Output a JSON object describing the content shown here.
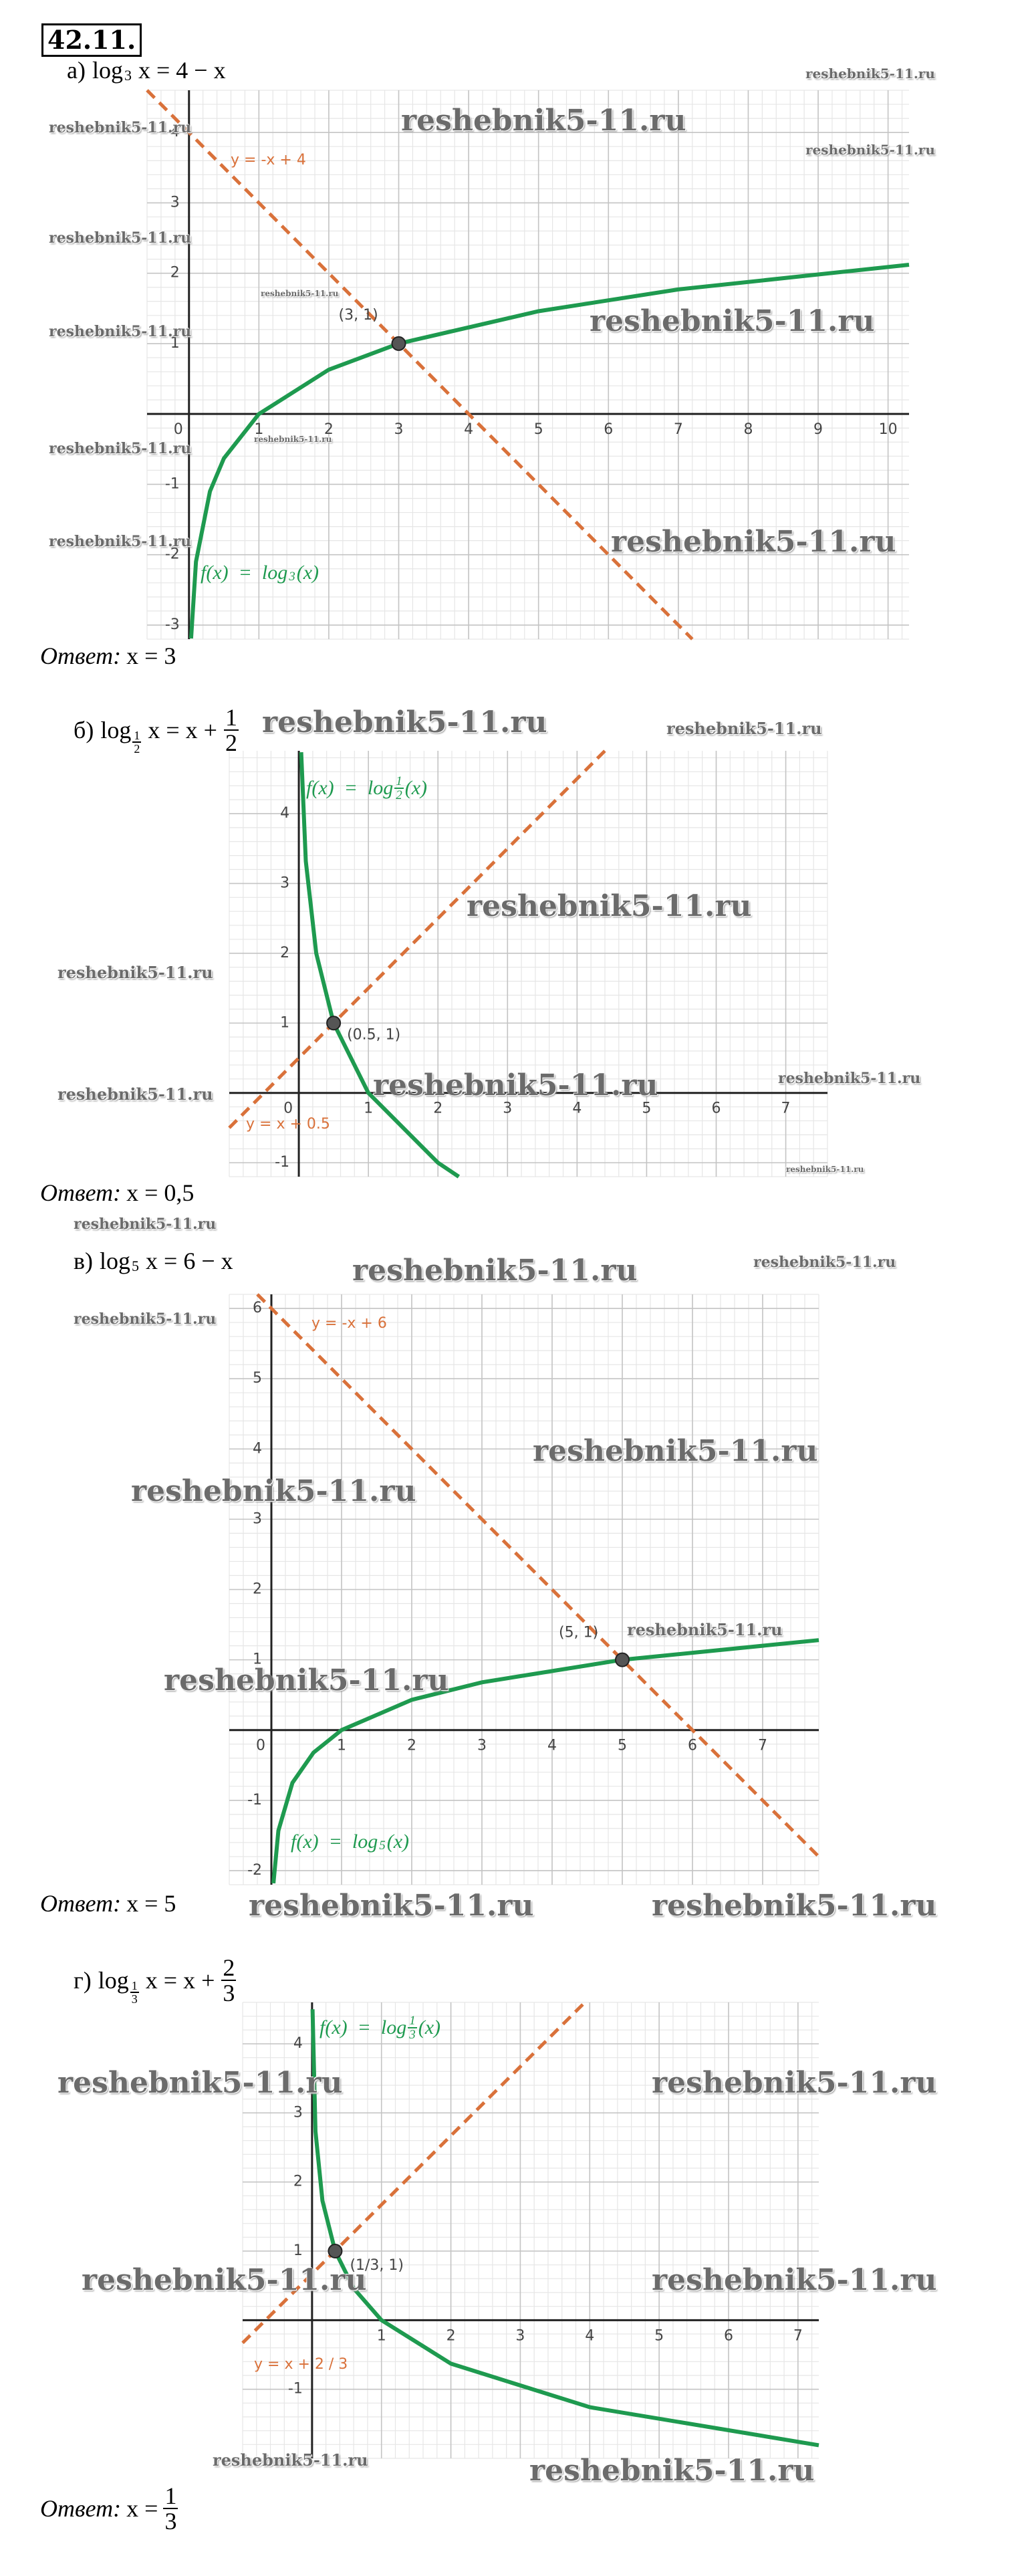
{
  "problem_number": "42.11.",
  "parts": [
    {
      "label": "а)",
      "equation": {
        "log": "log",
        "base": "3",
        "rhs": "x = 4 − x"
      },
      "graph": {
        "xlim": [
          -0.6,
          10.3
        ],
        "ylim": [
          -3.2,
          4.6
        ],
        "xticks": [
          0,
          1,
          2,
          3,
          4,
          5,
          6,
          7,
          8,
          9,
          10
        ],
        "yticks": [
          -3,
          -2,
          -1,
          1,
          2,
          3,
          4
        ],
        "curve": {
          "color": "#1e9a4f",
          "x": [
            0.03,
            0.1,
            0.3,
            0.5,
            1,
            2,
            3,
            5,
            7,
            10.3
          ],
          "y": [
            -3.19,
            -2.1,
            -1.1,
            -0.63,
            0,
            0.63,
            1,
            1.46,
            1.77,
            2.12
          ]
        },
        "line": {
          "color": "#d9713a",
          "x": [
            -0.6,
            7.2
          ],
          "y": [
            4.6,
            -3.2
          ]
        },
        "point": {
          "x": 3,
          "y": 1,
          "label": "(3, 1)"
        },
        "line_label": "y = -x + 4",
        "curve_label": {
          "text": "f(x)  =  log",
          "sub": "3",
          "tail": "(x)"
        }
      },
      "answer": {
        "label": "Ответ:",
        "value": "x = 3"
      },
      "watermarks": [
        "reshebnik5-11.ru",
        "reshebnik5-11.ru",
        "reshebnik5-11.ru",
        "reshebnik5-11.ru",
        "reshebnik5-11.ru",
        "reshebnik5-11.ru",
        "reshebnik5-11.ru",
        "reshebnik5-11.ru",
        "reshebnik5-11.ru",
        "reshebnik5-11.ru",
        "reshebnik5-11.ru",
        "reshebnik5-11.ru"
      ]
    },
    {
      "label": "б)",
      "equation": {
        "log": "log",
        "base": {
          "num": "1",
          "den": "2"
        },
        "rhs": "x = x +",
        "rhs_frac": {
          "num": "1",
          "den": "2"
        }
      },
      "graph": {
        "xlim": [
          -1,
          7.6
        ],
        "ylim": [
          -1.2,
          4.9
        ],
        "xticks": [
          0,
          1,
          2,
          3,
          4,
          5,
          6,
          7
        ],
        "yticks": [
          -1,
          1,
          2,
          3,
          4
        ],
        "curve": {
          "color": "#1e9a4f",
          "x": [
            0.034,
            0.1,
            0.25,
            0.5,
            1,
            2,
            2.3
          ],
          "y": [
            4.88,
            3.32,
            2,
            1,
            0,
            -1,
            -1.2
          ]
        },
        "line": {
          "color": "#d9713a",
          "x": [
            -1,
            4.4
          ],
          "y": [
            -0.5,
            4.9
          ]
        },
        "point": {
          "x": 0.5,
          "y": 1,
          "label": "(0.5, 1)"
        },
        "line_label": "y = x + 0.5",
        "curve_label": {
          "text": "f(x)  =  log",
          "sub": {
            "num": "1",
            "den": "2"
          },
          "tail": "(x)"
        }
      },
      "answer": {
        "label": "Ответ:",
        "value": "x = 0,5"
      },
      "watermarks": [
        "reshebnik5-11.ru",
        "reshebnik5-11.ru",
        "reshebnik5-11.ru",
        "reshebnik5-11.ru",
        "reshebnik5-11.ru",
        "reshebnik5-11.ru",
        "reshebnik5-11.ru",
        "reshebnik5-11.ru"
      ]
    },
    {
      "label": "в)",
      "equation": {
        "log": "log",
        "base": "5",
        "rhs": "x = 6 − x"
      },
      "graph": {
        "xlim": [
          -0.6,
          7.8
        ],
        "ylim": [
          -2.2,
          6.2
        ],
        "xticks": [
          0,
          1,
          2,
          3,
          4,
          5,
          6,
          7
        ],
        "yticks": [
          -2,
          -1,
          1,
          2,
          3,
          4,
          5,
          6
        ],
        "curve": {
          "color": "#1e9a4f",
          "x": [
            0.03,
            0.1,
            0.3,
            0.6,
            1,
            2,
            3,
            5,
            7.8
          ],
          "y": [
            -2.18,
            -1.43,
            -0.75,
            -0.32,
            0,
            0.43,
            0.68,
            1,
            1.28
          ]
        },
        "line": {
          "color": "#d9713a",
          "x": [
            -0.2,
            7.8
          ],
          "y": [
            6.2,
            -1.8
          ]
        },
        "point": {
          "x": 5,
          "y": 1,
          "label": "(5, 1)"
        },
        "line_label": "y = -x + 6",
        "curve_label": {
          "text": "f(x)  =  log",
          "sub": "5",
          "tail": "(x)"
        }
      },
      "answer": {
        "label": "Ответ:",
        "value": "x = 5"
      },
      "watermarks": [
        "reshebnik5-11.ru",
        "reshebnik5-11.ru",
        "reshebnik5-11.ru",
        "reshebnik5-11.ru",
        "reshebnik5-11.ru",
        "reshebnik5-11.ru",
        "reshebnik5-11.ru",
        "reshebnik5-11.ru",
        "reshebnik5-11.ru",
        "reshebnik5-11.ru"
      ]
    },
    {
      "label": "г)",
      "equation": {
        "log": "log",
        "base": {
          "num": "1",
          "den": "3"
        },
        "rhs": "x = x +",
        "rhs_frac": {
          "num": "2",
          "den": "3"
        }
      },
      "graph": {
        "xlim": [
          -1,
          7.3
        ],
        "ylim": [
          -2,
          4.6
        ],
        "xticks": [
          1,
          2,
          3,
          4,
          5,
          6,
          7
        ],
        "yticks": [
          -1,
          1,
          2,
          3,
          4
        ],
        "curve": {
          "color": "#1e9a4f",
          "x": [
            0.007,
            0.05,
            0.15,
            0.333,
            0.6,
            1,
            2,
            4,
            7.3
          ],
          "y": [
            4.5,
            2.73,
            1.73,
            1,
            0.46,
            0,
            -0.63,
            -1.26,
            -1.81
          ]
        },
        "line": {
          "color": "#d9713a",
          "x": [
            -1,
            3.9
          ],
          "y": [
            -0.33,
            4.57
          ]
        },
        "point": {
          "x": 0.333,
          "y": 1,
          "label": "(1/3, 1)"
        },
        "line_label": "y = x + 2 / 3",
        "curve_label": {
          "text": "f(x)  =  log",
          "sub": {
            "num": "1",
            "den": "3"
          },
          "tail": "(x)"
        }
      },
      "answer": {
        "label": "Ответ:",
        "value": "x =",
        "frac": {
          "num": "1",
          "den": "3"
        }
      },
      "watermarks": [
        "reshebnik5-11.ru",
        "reshebnik5-11.ru",
        "reshebnik5-11.ru",
        "reshebnik5-11.ru",
        "reshebnik5-11.ru",
        "reshebnik5-11.ru"
      ]
    }
  ]
}
